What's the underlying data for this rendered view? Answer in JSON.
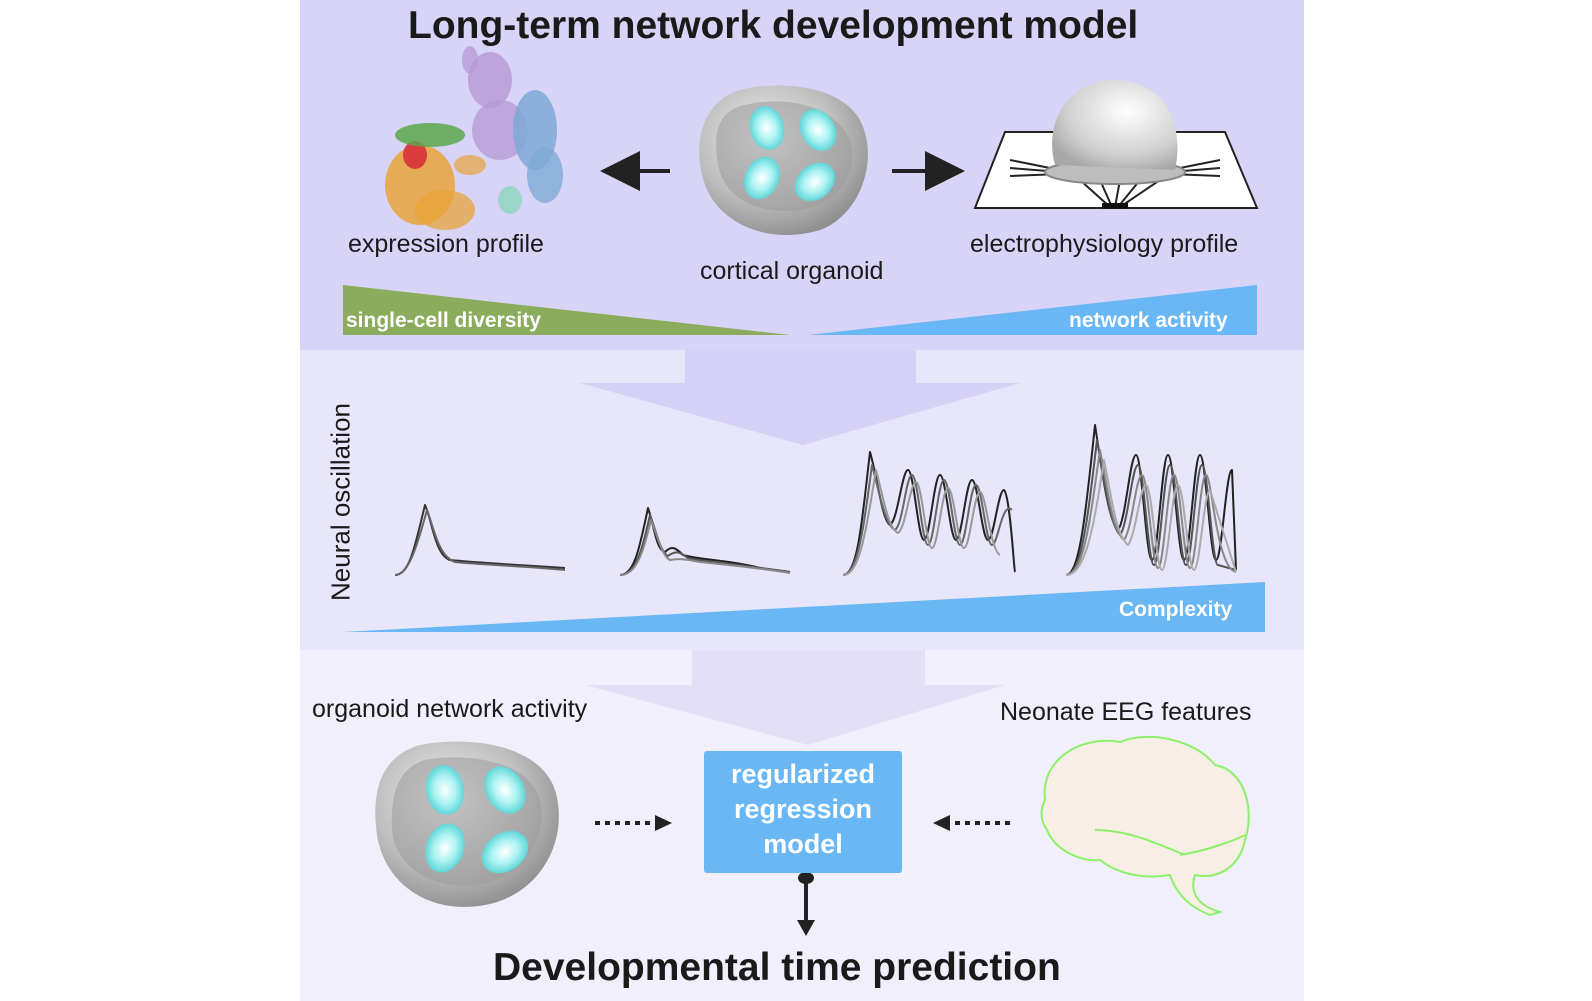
{
  "title": "Long-term network development model",
  "top": {
    "expression_label": "expression profile",
    "organoid_label": "cortical organoid",
    "ephys_label": "electrophysiology profile",
    "left_gradient_label": "single-cell diversity",
    "right_gradient_label": "network activity"
  },
  "middle": {
    "axis_label": "Neural oscillation",
    "gradient_label": "Complexity"
  },
  "bottom": {
    "organoid_activity_label": "organoid network activity",
    "eeg_label": "Neonate EEG features",
    "model_label": "regularized\nregression\nmodel",
    "result_label": "Developmental time prediction"
  },
  "colors": {
    "green_gradient": "#8aac5c",
    "blue_gradient": "#6ab7f5",
    "cyan_nucleus": "#6fe0e0",
    "brain_outline": "#8ef06a"
  }
}
